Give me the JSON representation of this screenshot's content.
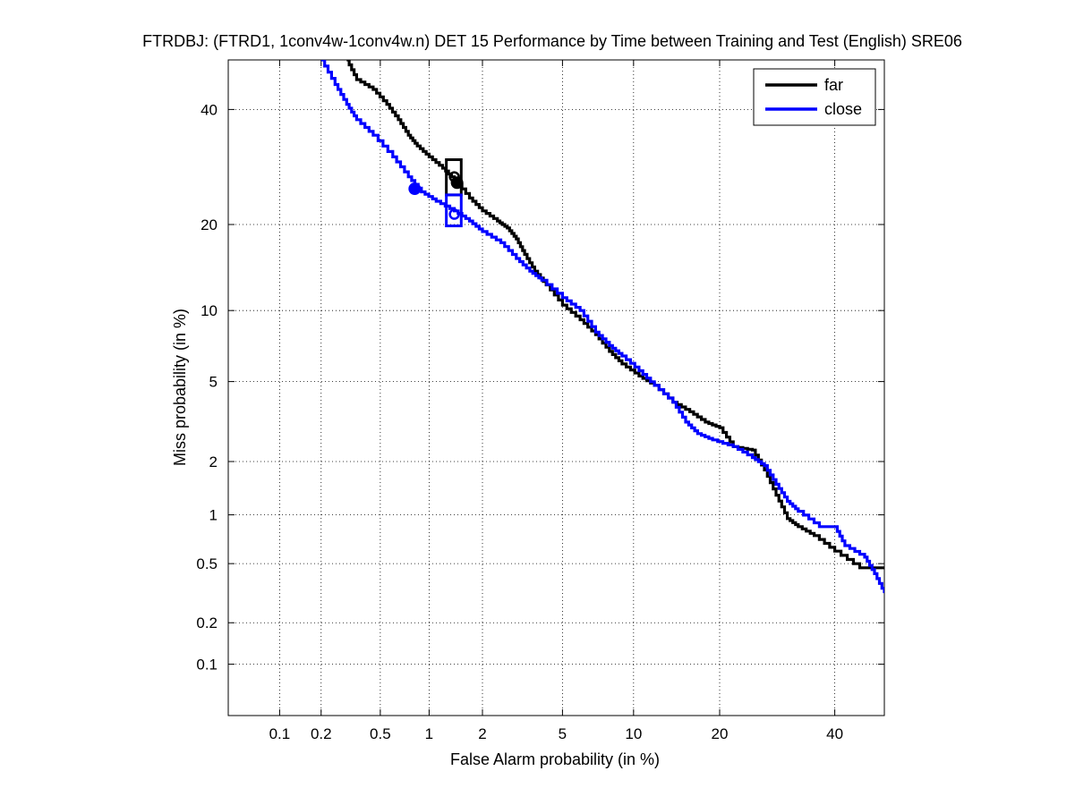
{
  "chart_data": {
    "type": "line",
    "title": "FTRDBJ: (FTRD1, 1conv4w-1conv4w.n) DET 15 Performance by Time between Training and Test (English) SRE06",
    "xlabel": "False Alarm probability (in %)",
    "ylabel": "Miss probability (in %)",
    "x_scale": "probit",
    "y_scale": "probit",
    "xlim": [
      0.04,
      50
    ],
    "ylim": [
      0.04,
      50
    ],
    "x_ticks": [
      0.1,
      0.2,
      0.5,
      1,
      2,
      5,
      10,
      20,
      40
    ],
    "x_tick_labels": [
      "0.1",
      "0.2",
      "0.5",
      "1",
      "2",
      "5",
      "10",
      "20",
      "40"
    ],
    "y_ticks": [
      0.1,
      0.2,
      0.5,
      1,
      2,
      5,
      10,
      20,
      40
    ],
    "y_tick_labels": [
      "0.1",
      "0.2",
      "0.5",
      "1",
      "2",
      "5",
      "10",
      "20",
      "40"
    ],
    "grid": true,
    "legend_position": "top-right",
    "series": [
      {
        "name": "far",
        "color": "#000000",
        "points": [
          [
            0.3,
            50
          ],
          [
            0.35,
            46
          ],
          [
            0.45,
            44
          ],
          [
            0.55,
            41
          ],
          [
            0.65,
            38
          ],
          [
            0.75,
            35
          ],
          [
            0.85,
            33
          ],
          [
            1.0,
            31
          ],
          [
            1.2,
            29
          ],
          [
            1.4,
            27
          ],
          [
            1.7,
            24
          ],
          [
            2.0,
            22
          ],
          [
            2.4,
            20.5
          ],
          [
            2.7,
            19.5
          ],
          [
            3.0,
            18
          ],
          [
            3.3,
            16
          ],
          [
            3.7,
            14
          ],
          [
            4.2,
            12.5
          ],
          [
            5.0,
            10.5
          ],
          [
            6.0,
            9.2
          ],
          [
            7.0,
            8.0
          ],
          [
            8.0,
            6.8
          ],
          [
            9.0,
            6.0
          ],
          [
            10.5,
            5.3
          ],
          [
            12.0,
            4.8
          ],
          [
            14.0,
            4.0
          ],
          [
            16.0,
            3.6
          ],
          [
            18.0,
            3.2
          ],
          [
            20.0,
            3.0
          ],
          [
            22.0,
            2.4
          ],
          [
            25.0,
            2.3
          ],
          [
            27.0,
            1.8
          ],
          [
            29.0,
            1.3
          ],
          [
            31.0,
            0.95
          ],
          [
            33.0,
            0.85
          ],
          [
            36.0,
            0.75
          ],
          [
            40.0,
            0.6
          ],
          [
            45.0,
            0.47
          ],
          [
            50.0,
            0.47
          ]
        ],
        "min_dcf_point": [
          1.45,
          26.5
        ],
        "act_dcf_point": [
          1.4,
          27.5
        ]
      },
      {
        "name": "close",
        "color": "#0000ff",
        "points": [
          [
            0.2,
            50
          ],
          [
            0.25,
            45
          ],
          [
            0.3,
            41
          ],
          [
            0.35,
            38
          ],
          [
            0.45,
            35
          ],
          [
            0.6,
            31
          ],
          [
            0.75,
            27.5
          ],
          [
            0.9,
            25
          ],
          [
            1.1,
            23.5
          ],
          [
            1.4,
            22
          ],
          [
            1.7,
            20.5
          ],
          [
            2.0,
            19
          ],
          [
            2.5,
            17.5
          ],
          [
            3.0,
            15.5
          ],
          [
            3.5,
            14
          ],
          [
            4.0,
            13
          ],
          [
            5.0,
            11.2
          ],
          [
            6.0,
            10
          ],
          [
            7.0,
            8.2
          ],
          [
            8.0,
            7.2
          ],
          [
            9.0,
            6.5
          ],
          [
            10.5,
            5.6
          ],
          [
            12.0,
            4.8
          ],
          [
            14.0,
            4.0
          ],
          [
            15.5,
            3.2
          ],
          [
            17.0,
            2.8
          ],
          [
            19.0,
            2.6
          ],
          [
            22.0,
            2.4
          ],
          [
            25.0,
            2.1
          ],
          [
            27.0,
            1.9
          ],
          [
            29.0,
            1.5
          ],
          [
            31.0,
            1.2
          ],
          [
            33.0,
            1.05
          ],
          [
            37.0,
            0.85
          ],
          [
            40.0,
            0.85
          ],
          [
            42.0,
            0.65
          ],
          [
            46.0,
            0.55
          ],
          [
            48.0,
            0.43
          ],
          [
            50.0,
            0.32
          ]
        ],
        "min_dcf_point": [
          0.82,
          25.5
        ],
        "act_dcf_point": [
          1.4,
          21.5
        ]
      }
    ],
    "decision_boxes": [
      {
        "series": "far",
        "color": "#000000",
        "x_range": [
          1.26,
          1.53
        ],
        "y_range": [
          24.5,
          30.5
        ]
      },
      {
        "series": "close",
        "color": "#0000ff",
        "x_range": [
          1.26,
          1.53
        ],
        "y_range": [
          19.8,
          24.5
        ]
      }
    ]
  }
}
